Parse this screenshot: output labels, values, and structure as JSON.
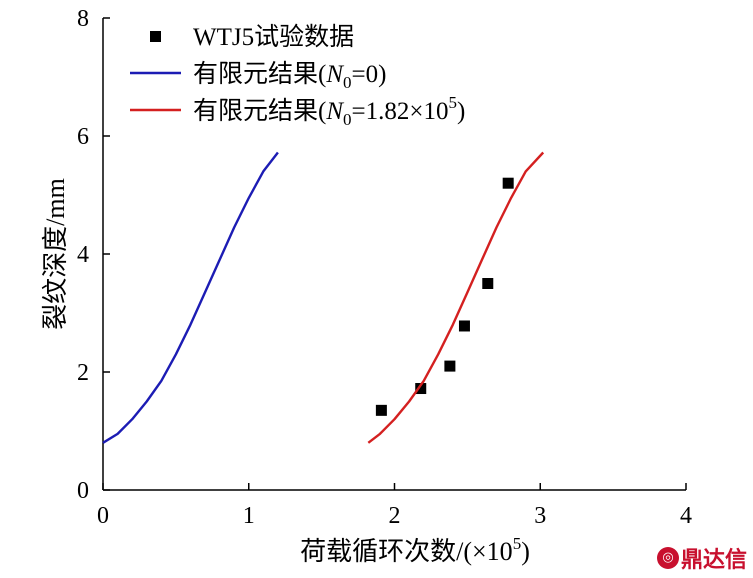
{
  "chart_data": {
    "type": "line",
    "xlabel_main": "荷载循环次数/(×10",
    "xlabel_sup": "5",
    "xlabel_end": ")",
    "ylabel": "裂纹深度/mm",
    "xlim": [
      0,
      4
    ],
    "ylim": [
      0,
      8
    ],
    "x_ticks": [
      "0",
      "1",
      "2",
      "3",
      "4"
    ],
    "y_ticks": [
      "0",
      "2",
      "4",
      "6",
      "8"
    ],
    "legend_placement": "top-left",
    "grid": false,
    "series": [
      {
        "id": "test",
        "kind": "scatter",
        "color": "#000000",
        "name": "WTJ5试验数据",
        "points": [
          [
            1.91,
            1.35
          ],
          [
            2.18,
            1.72
          ],
          [
            2.38,
            2.1
          ],
          [
            2.48,
            2.78
          ],
          [
            2.64,
            3.5
          ],
          [
            2.78,
            5.2
          ]
        ]
      },
      {
        "id": "fe0",
        "kind": "line",
        "color": "#1c1cb4",
        "name_main": "有限元结果(",
        "name_sub_label": "N",
        "name_sub": "0",
        "name_eq": "=0)",
        "points": [
          [
            0.0,
            0.8
          ],
          [
            0.1,
            0.95
          ],
          [
            0.2,
            1.2
          ],
          [
            0.3,
            1.5
          ],
          [
            0.4,
            1.85
          ],
          [
            0.5,
            2.3
          ],
          [
            0.6,
            2.8
          ],
          [
            0.7,
            3.35
          ],
          [
            0.8,
            3.9
          ],
          [
            0.9,
            4.45
          ],
          [
            1.0,
            4.95
          ],
          [
            1.1,
            5.4
          ],
          [
            1.2,
            5.72
          ]
        ]
      },
      {
        "id": "fe1",
        "kind": "line",
        "color": "#d42020",
        "name_main": "有限元结果(",
        "name_sub_label": "N",
        "name_sub": "0",
        "name_eq": "=1.82×10",
        "name_sup": "5",
        "name_end": ")",
        "points": [
          [
            1.82,
            0.8
          ],
          [
            1.9,
            0.95
          ],
          [
            2.0,
            1.2
          ],
          [
            2.1,
            1.5
          ],
          [
            2.2,
            1.85
          ],
          [
            2.3,
            2.3
          ],
          [
            2.4,
            2.8
          ],
          [
            2.5,
            3.35
          ],
          [
            2.6,
            3.9
          ],
          [
            2.7,
            4.45
          ],
          [
            2.8,
            4.95
          ],
          [
            2.9,
            5.4
          ],
          [
            3.02,
            5.72
          ]
        ]
      }
    ]
  },
  "watermark": {
    "icon": "logo-icon",
    "text": "鼎达信"
  }
}
